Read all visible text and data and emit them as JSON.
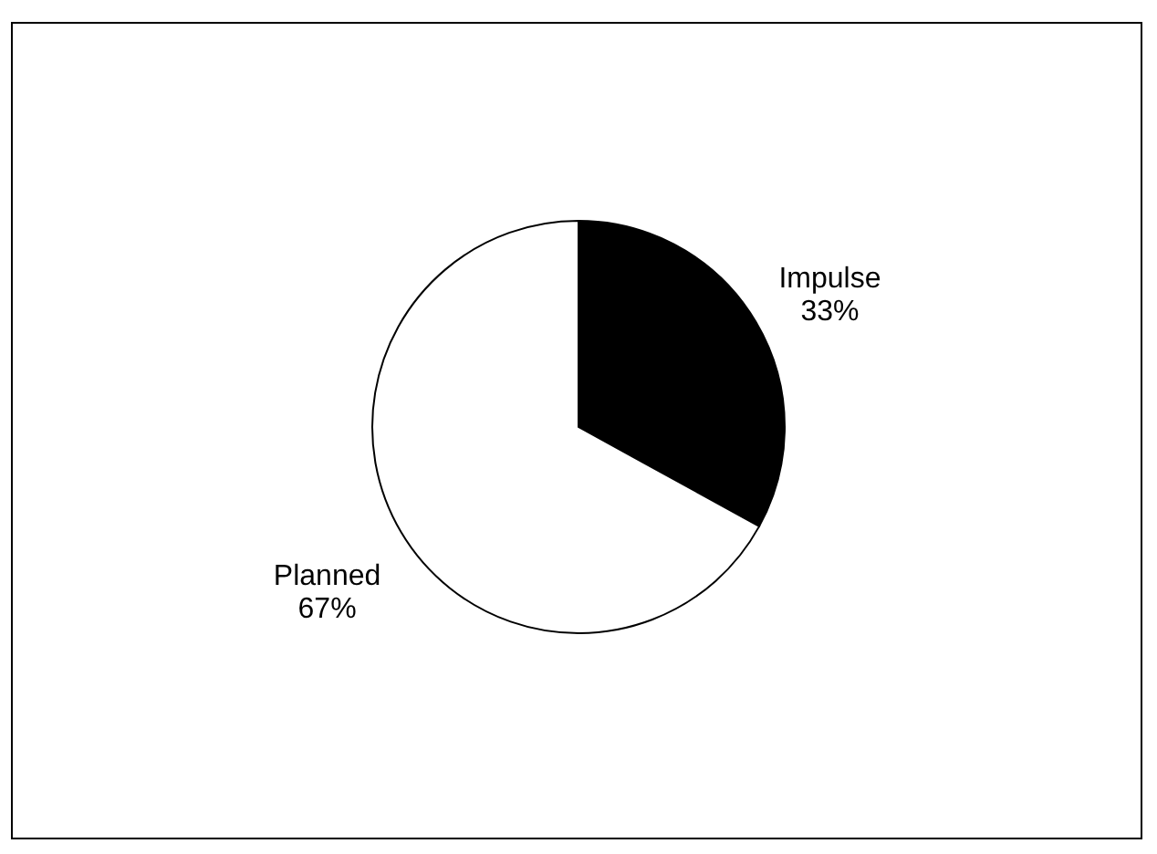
{
  "chart_data": {
    "type": "pie",
    "categories": [
      "Impulse",
      "Planned"
    ],
    "values": [
      33,
      67
    ],
    "colors": [
      "#000000",
      "#ffffff"
    ],
    "value_labels": [
      "33%",
      "67%"
    ]
  }
}
